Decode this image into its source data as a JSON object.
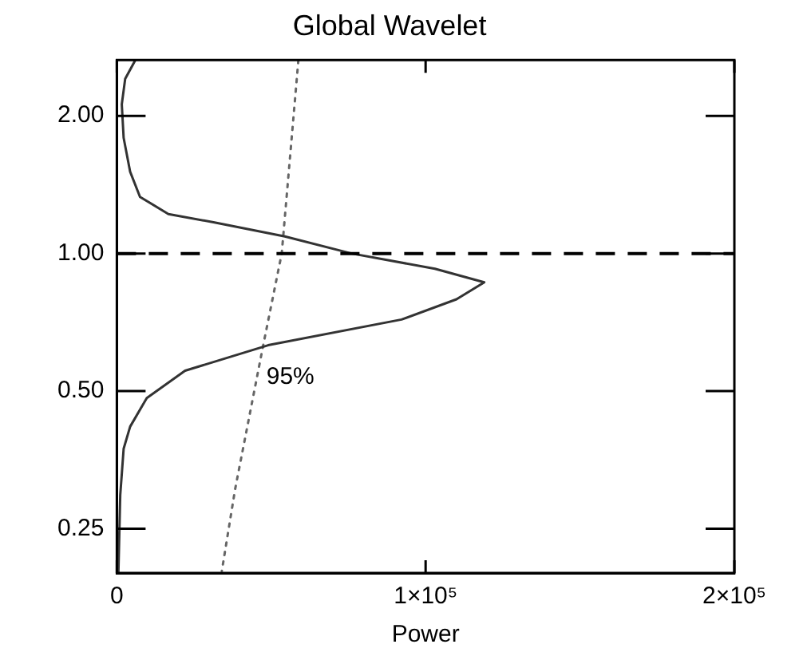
{
  "chart_data": {
    "type": "line",
    "title": "Global Wavelet",
    "xlabel": "Power",
    "xlim": [
      0,
      200000
    ],
    "xticks": [
      0,
      {
        "value": 100000,
        "label": "1×10⁵"
      },
      {
        "value": 200000,
        "label": "2×10⁵"
      }
    ],
    "ylim": [
      0.2,
      2.65
    ],
    "yticks": [
      {
        "value": 0.25,
        "label": "0.25"
      },
      {
        "value": 0.5,
        "label": "0.50"
      },
      {
        "value": 1,
        "label": "1.00"
      },
      {
        "value": 2,
        "label": "2.00"
      }
    ],
    "log": "y",
    "grid": false,
    "legend": false,
    "marker": "none",
    "series": [
      {
        "color": "#333333",
        "line_style": "solid",
        "x": [
          6000,
          2700,
          1600,
          2200,
          4300,
          7500,
          16700,
          31300,
          54400,
          76000,
          103000,
          119000,
          110000,
          92200,
          49000,
          22100,
          9700,
          4300,
          2200,
          1100,
          500
        ],
        "values": [
          2.65,
          2.41,
          2.12,
          1.79,
          1.51,
          1.33,
          1.22,
          1.17,
          1.09,
          1.0,
          0.926,
          0.865,
          0.794,
          0.717,
          0.63,
          0.554,
          0.483,
          0.418,
          0.374,
          0.296,
          0.2
        ]
      },
      {
        "name": "95%",
        "color": "#666666",
        "line_style": "dotted",
        "x": [
          58800,
          53400,
          47400,
          38300,
          34000
        ],
        "values": [
          2.65,
          1.0,
          0.63,
          0.305,
          0.202
        ]
      }
    ],
    "ref_lines": [
      {
        "axis": "y",
        "value": 1,
        "color": "#000000",
        "line_style": "dashed"
      }
    ]
  }
}
